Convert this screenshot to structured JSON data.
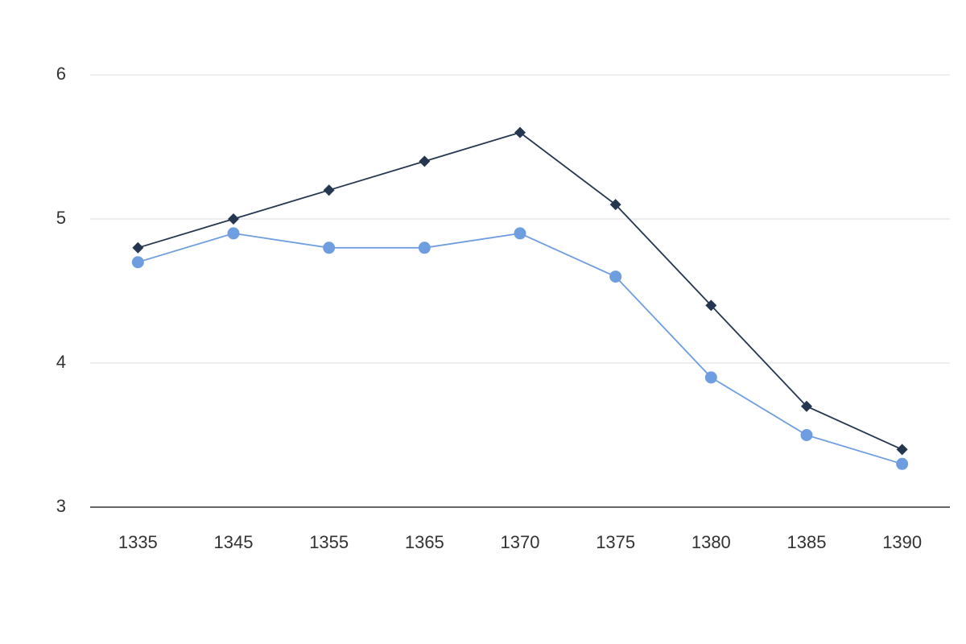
{
  "chart_data": {
    "type": "line",
    "categories": [
      "1335",
      "1345",
      "1355",
      "1365",
      "1370",
      "1375",
      "1380",
      "1385",
      "1390"
    ],
    "series": [
      {
        "color": "#253650",
        "marker": "diamond",
        "values": [
          4.8,
          5.0,
          5.2,
          5.4,
          5.6,
          5.1,
          4.4,
          3.7,
          3.4
        ]
      },
      {
        "color": "#6f9ee0",
        "marker": "circle",
        "values": [
          4.7,
          4.9,
          4.8,
          4.8,
          4.9,
          4.6,
          3.9,
          3.5,
          3.3
        ]
      }
    ],
    "ylim": [
      3,
      6
    ],
    "yticks": [
      3,
      4,
      5,
      6
    ],
    "grid": true
  }
}
